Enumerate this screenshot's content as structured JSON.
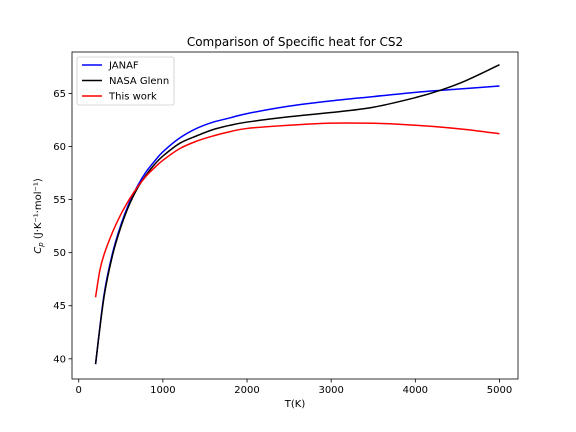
{
  "chart_data": {
    "type": "line",
    "title": "Comparison of Specific heat for CS2",
    "xlabel": "T(K)",
    "ylabel_main": "C",
    "ylabel_sub": "p",
    "ylabel_units": " (J·K⁻¹·mol⁻¹)",
    "xlim": [
      -80,
      5220
    ],
    "ylim": [
      38.1,
      68.9
    ],
    "xticks": [
      0,
      1000,
      2000,
      3000,
      4000,
      5000
    ],
    "yticks": [
      40,
      45,
      50,
      55,
      60,
      65
    ],
    "grid": false,
    "legend_position": "upper left",
    "series": [
      {
        "name": "JANAF",
        "color": "#0000ff",
        "x": [
          200,
          300,
          400,
          500,
          600,
          700,
          800,
          900,
          1000,
          1200,
          1400,
          1600,
          1800,
          2000,
          2500,
          3000,
          3500,
          4000,
          4500,
          5000
        ],
        "y": [
          39.5,
          46.0,
          49.9,
          52.6,
          54.7,
          56.3,
          57.6,
          58.6,
          59.5,
          60.8,
          61.7,
          62.3,
          62.7,
          63.1,
          63.8,
          64.3,
          64.7,
          65.1,
          65.4,
          65.7
        ]
      },
      {
        "name": "NASA Glenn",
        "color": "#000000",
        "x": [
          200,
          300,
          400,
          500,
          600,
          700,
          800,
          900,
          1000,
          1200,
          1400,
          1600,
          1800,
          2000,
          2500,
          3000,
          3500,
          4000,
          4300,
          4600,
          5000
        ],
        "y": [
          39.5,
          45.8,
          49.7,
          52.4,
          54.5,
          56.1,
          57.3,
          58.3,
          59.1,
          60.3,
          61.0,
          61.6,
          62.0,
          62.3,
          62.8,
          63.2,
          63.7,
          64.6,
          65.3,
          66.2,
          67.7
        ]
      },
      {
        "name": "This work",
        "color": "#ff0000",
        "x": [
          200,
          250,
          300,
          400,
          500,
          600,
          700,
          800,
          900,
          1000,
          1200,
          1400,
          1600,
          1800,
          2000,
          2500,
          3000,
          3400,
          3800,
          4200,
          4600,
          5000
        ],
        "y": [
          45.8,
          48.3,
          49.8,
          51.9,
          53.6,
          55.0,
          56.2,
          57.2,
          58.0,
          58.7,
          59.8,
          60.5,
          61.0,
          61.4,
          61.7,
          62.0,
          62.2,
          62.2,
          62.1,
          61.9,
          61.6,
          61.2
        ]
      }
    ]
  }
}
